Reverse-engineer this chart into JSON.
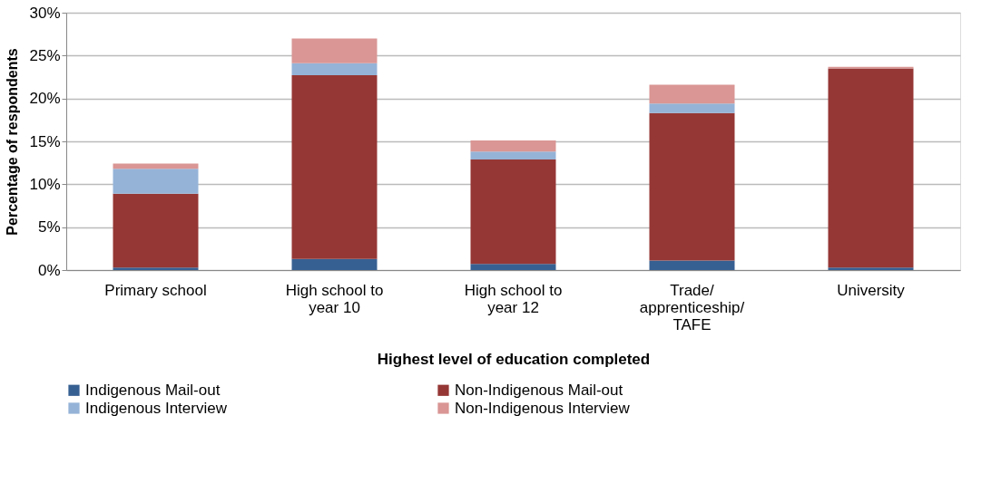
{
  "chart_data": {
    "type": "bar",
    "stacked": true,
    "xlabel": "Highest level of education completed",
    "ylabel": "Percentage of respondents",
    "categories": [
      "Primary school",
      "High school to year 10",
      "High school to year 12",
      "Trade/ apprenticeship/ TAFE",
      "University"
    ],
    "series": [
      {
        "name": "Indigenous Mail-out",
        "color": "#376092",
        "values": [
          0.3,
          1.3,
          0.7,
          1.1,
          0.3
        ]
      },
      {
        "name": "Non-Indigenous Mail-out",
        "color": "#953735",
        "values": [
          8.6,
          21.4,
          12.2,
          17.2,
          23.2
        ]
      },
      {
        "name": "Indigenous Interview",
        "color": "#95b3d7",
        "values": [
          2.9,
          1.4,
          0.9,
          1.1,
          0.0
        ]
      },
      {
        "name": "Non-Indigenous Interview",
        "color": "#d99694",
        "values": [
          0.6,
          2.9,
          1.3,
          2.2,
          0.2
        ]
      }
    ],
    "ylim": [
      0,
      30
    ],
    "yticks": [
      {
        "value": 0,
        "label": "0%"
      },
      {
        "value": 5,
        "label": "5%"
      },
      {
        "value": 10,
        "label": "10%"
      },
      {
        "value": 15,
        "label": "15%"
      },
      {
        "value": 20,
        "label": "20%"
      },
      {
        "value": 25,
        "label": "25%"
      },
      {
        "value": 30,
        "label": "30%"
      }
    ],
    "grid": "y",
    "legend": "bottom"
  }
}
